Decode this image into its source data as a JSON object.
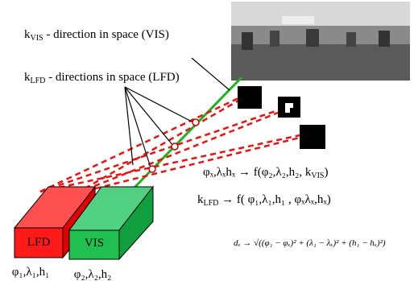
{
  "labels": {
    "k_vis": {
      "symbol": "k",
      "subscript": "VIS",
      "text": " - direction in space (VIS)"
    },
    "k_lfd": {
      "symbol": "k",
      "subscript": "LFD",
      "text": " - directions in space (LFD)"
    }
  },
  "cameras": {
    "lfd": {
      "name": "LFD",
      "params": "φ₁,λ₁,h₁"
    },
    "vis": {
      "name": "VIS",
      "params": "φ₂,λ₂,h₂"
    }
  },
  "formulas": {
    "position": {
      "text": "φₓ,λₓhₓ → f(φ₂,λ₂,h₂, k",
      "subscript": "VIS",
      "end": ")"
    },
    "direction": {
      "symbol": "k",
      "subscript": "LFD",
      "text": " → f( φ₁,λ₁,h₁ , φₓλₓ,hₓ)"
    },
    "distance": "dₓ → √((φ₁ − φₓ)² + (λ₁ − λₓ)² + (h₁ − hₓ)²)"
  }
}
